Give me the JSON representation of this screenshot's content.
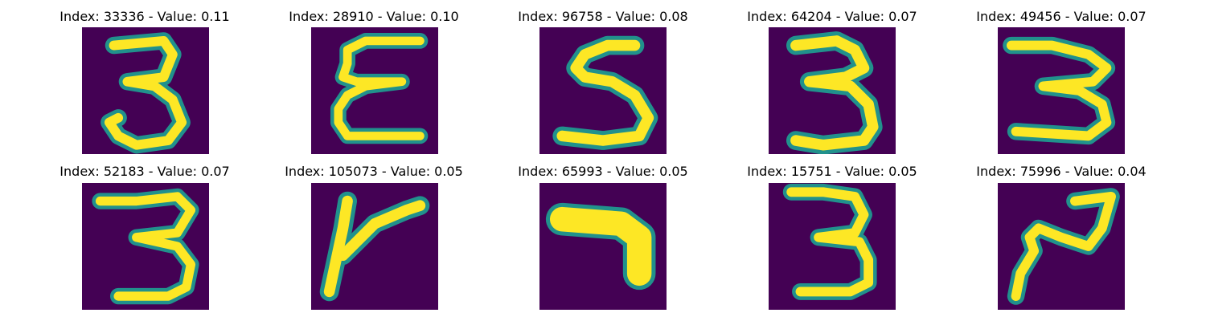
{
  "figure": {
    "colormap_background": "#440154",
    "colormap_mid": "#21918c",
    "colormap_high": "#fde725",
    "panels": [
      {
        "title": "Index: 33336 - Value: 0.11",
        "index": 33336,
        "value": 0.11
      },
      {
        "title": "Index: 28910 - Value: 0.10",
        "index": 28910,
        "value": 0.1
      },
      {
        "title": "Index: 96758 - Value: 0.08",
        "index": 96758,
        "value": 0.08
      },
      {
        "title": "Index: 64204 - Value: 0.07",
        "index": 64204,
        "value": 0.07
      },
      {
        "title": "Index: 49456 - Value: 0.07",
        "index": 49456,
        "value": 0.07
      },
      {
        "title": "Index: 52183 - Value: 0.07",
        "index": 52183,
        "value": 0.07
      },
      {
        "title": "Index: 105073 - Value: 0.05",
        "index": 105073,
        "value": 0.05
      },
      {
        "title": "Index: 65993 - Value: 0.05",
        "index": 65993,
        "value": 0.05
      },
      {
        "title": "Index: 15751 - Value: 0.05",
        "index": 15751,
        "value": 0.05
      },
      {
        "title": "Index: 75996 - Value: 0.04",
        "index": 75996,
        "value": 0.04
      }
    ]
  }
}
